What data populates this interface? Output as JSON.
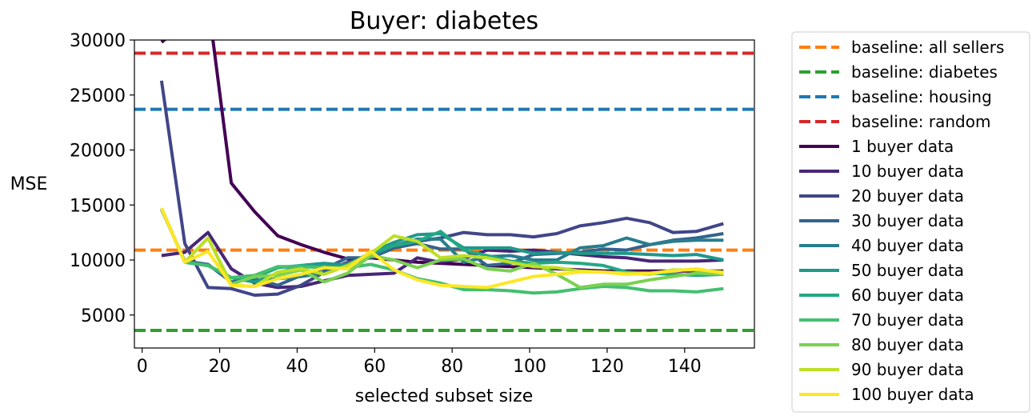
{
  "chart_data": {
    "type": "line",
    "title": "Buyer: diabetes",
    "xlabel": "selected subset size",
    "ylabel": "MSE",
    "xlim": [
      -2,
      158
    ],
    "ylim": [
      2000,
      30000
    ],
    "xticks": [
      0,
      20,
      40,
      60,
      80,
      100,
      120,
      140
    ],
    "yticks": [
      5000,
      10000,
      15000,
      20000,
      25000,
      30000
    ],
    "legend_position": "outside-right",
    "grid": false,
    "baselines": [
      {
        "name": "baseline: all sellers",
        "value": 10900,
        "color": "#ff7f0e",
        "dash": true
      },
      {
        "name": "baseline: diabetes",
        "value": 3600,
        "color": "#2ca02c",
        "dash": true
      },
      {
        "name": "baseline: housing",
        "value": 23700,
        "color": "#1f77b4",
        "dash": true
      },
      {
        "name": "baseline: random",
        "value": 28800,
        "color": "#d62728",
        "dash": true
      }
    ],
    "x": [
      5,
      11,
      17,
      23,
      29,
      35,
      41,
      47,
      53,
      59,
      65,
      71,
      77,
      83,
      89,
      95,
      101,
      107,
      113,
      119,
      125,
      131,
      137,
      143,
      150
    ],
    "series": [
      {
        "name": "1 buyer data",
        "color": "#440154",
        "values": [
          29800,
          31500,
          33500,
          17000,
          14400,
          12200,
          11400,
          10700,
          10100,
          10200,
          10000,
          9800,
          9700,
          9600,
          9500,
          9400,
          9300,
          9200,
          9100,
          9000,
          9000,
          9000,
          9000,
          9000,
          9000
        ]
      },
      {
        "name": "10 buyer data",
        "color": "#482677",
        "values": [
          10400,
          10700,
          12500,
          9200,
          7900,
          7500,
          7600,
          8100,
          8600,
          8700,
          8800,
          10200,
          9800,
          10100,
          10900,
          10800,
          10900,
          10700,
          10500,
          10300,
          10200,
          9900,
          9900,
          9900,
          10000
        ]
      },
      {
        "name": "20 buyer data",
        "color": "#404688",
        "values": [
          26300,
          11500,
          7500,
          7400,
          6800,
          6900,
          7700,
          8900,
          9800,
          10200,
          11100,
          11700,
          12000,
          12500,
          12300,
          12300,
          12100,
          12400,
          13100,
          13400,
          13800,
          13400,
          12500,
          12600,
          13300
        ]
      },
      {
        "name": "30 buyer data",
        "color": "#33638d",
        "values": [
          14600,
          9900,
          9600,
          8000,
          8300,
          7700,
          8600,
          9200,
          10200,
          10200,
          11100,
          11500,
          11000,
          11000,
          9500,
          9700,
          10500,
          10600,
          10700,
          11000,
          10900,
          11400,
          11800,
          12000,
          12400
        ]
      },
      {
        "name": "40 buyer data",
        "color": "#287d8e",
        "values": [
          14700,
          9800,
          9500,
          8400,
          8000,
          8300,
          8500,
          8800,
          9700,
          10300,
          11300,
          11900,
          11900,
          9800,
          10300,
          10400,
          10000,
          10000,
          11100,
          11300,
          12000,
          11400,
          11700,
          11800,
          11800
        ]
      },
      {
        "name": "50 buyer data",
        "color": "#1f988b",
        "values": [
          14700,
          9800,
          9500,
          8400,
          8000,
          8800,
          9500,
          9700,
          9500,
          10700,
          11600,
          12300,
          12400,
          11100,
          11100,
          11100,
          10600,
          10700,
          10600,
          10600,
          10600,
          10500,
          10400,
          10500,
          10000
        ]
      },
      {
        "name": "60 buyer data",
        "color": "#22a884",
        "values": [
          14700,
          9800,
          9500,
          8400,
          8400,
          9300,
          9500,
          9400,
          9300,
          10600,
          11300,
          11700,
          12600,
          10900,
          10400,
          9900,
          9700,
          9800,
          9700,
          9500,
          8900,
          8800,
          8700,
          8600,
          8700
        ]
      },
      {
        "name": "70 buyer data",
        "color": "#44bf70",
        "values": [
          14700,
          9800,
          9500,
          8400,
          8600,
          9400,
          9400,
          9300,
          9300,
          9600,
          9100,
          8300,
          7900,
          7300,
          7300,
          7200,
          7000,
          7100,
          7400,
          7600,
          7500,
          7200,
          7200,
          7100,
          7400
        ]
      },
      {
        "name": "80 buyer data",
        "color": "#7ad151",
        "values": [
          14700,
          9800,
          12000,
          7800,
          8500,
          8600,
          9100,
          8000,
          8800,
          10400,
          10000,
          9300,
          10000,
          10100,
          9200,
          9000,
          9700,
          8700,
          7500,
          7800,
          7800,
          8200,
          8500,
          8800,
          8700
        ]
      },
      {
        "name": "90 buyer data",
        "color": "#bddf26",
        "values": [
          14700,
          9800,
          12000,
          7700,
          7600,
          8900,
          9200,
          8700,
          9500,
          10600,
          12200,
          11700,
          10200,
          10400,
          10200,
          9800,
          9400,
          9300,
          9000,
          8900,
          8800,
          8700,
          9100,
          9100,
          8900
        ]
      },
      {
        "name": "100 buyer data",
        "color": "#fde725",
        "values": [
          14700,
          9800,
          10800,
          7700,
          7600,
          8300,
          8700,
          9300,
          9200,
          10800,
          9100,
          8200,
          7700,
          7600,
          7500,
          8000,
          8500,
          8700,
          8900,
          8900,
          8700,
          8800,
          9000,
          9200,
          8800
        ]
      }
    ]
  }
}
